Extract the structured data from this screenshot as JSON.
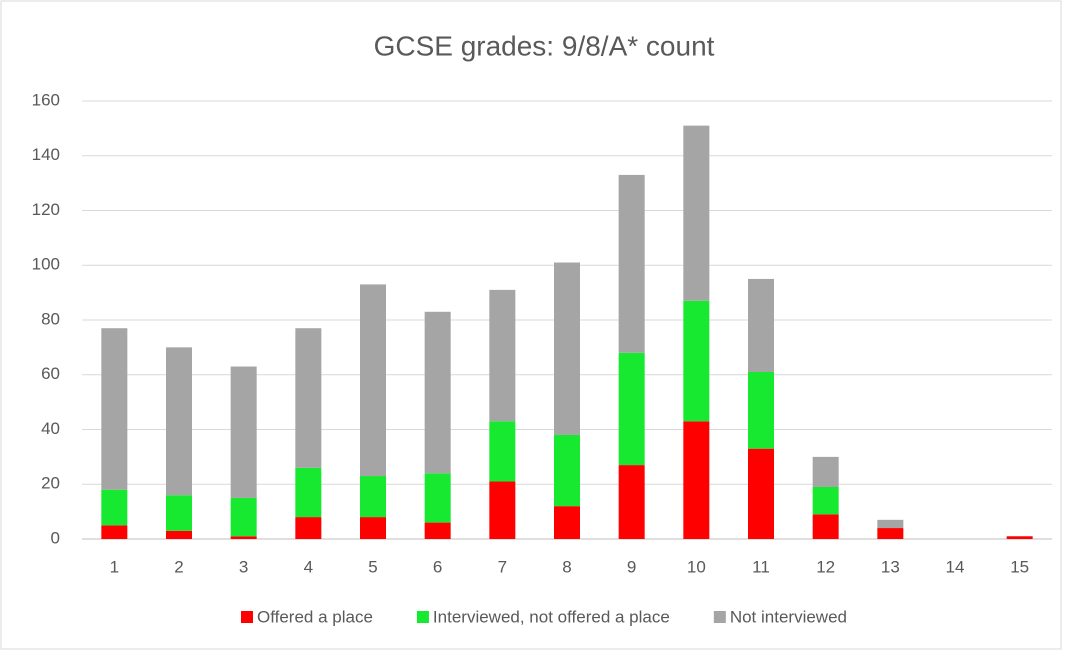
{
  "chart_data": {
    "type": "stacked_bar",
    "title": "GCSE grades: 9/8/A* count",
    "categories": [
      "1",
      "2",
      "3",
      "4",
      "5",
      "6",
      "7",
      "8",
      "9",
      "10",
      "11",
      "12",
      "13",
      "14",
      "15"
    ],
    "series": [
      {
        "name": "Offered a place",
        "color": "#ff0000",
        "values": [
          5,
          3,
          1,
          8,
          8,
          6,
          21,
          12,
          27,
          43,
          33,
          9,
          4,
          0,
          1
        ]
      },
      {
        "name": "Interviewed, not offered a place",
        "color": "#17e830",
        "values": [
          13,
          13,
          14,
          18,
          15,
          18,
          22,
          26,
          41,
          44,
          28,
          10,
          0,
          0,
          0
        ]
      },
      {
        "name": "Not interviewed",
        "color": "#a5a5a5",
        "values": [
          59,
          54,
          48,
          51,
          70,
          59,
          48,
          63,
          65,
          64,
          34,
          11,
          3,
          0,
          0
        ]
      }
    ],
    "ylim": [
      0,
      160
    ],
    "yticks": [
      0,
      20,
      40,
      60,
      80,
      100,
      120,
      140,
      160
    ],
    "grid": true,
    "legend": "bottom"
  }
}
